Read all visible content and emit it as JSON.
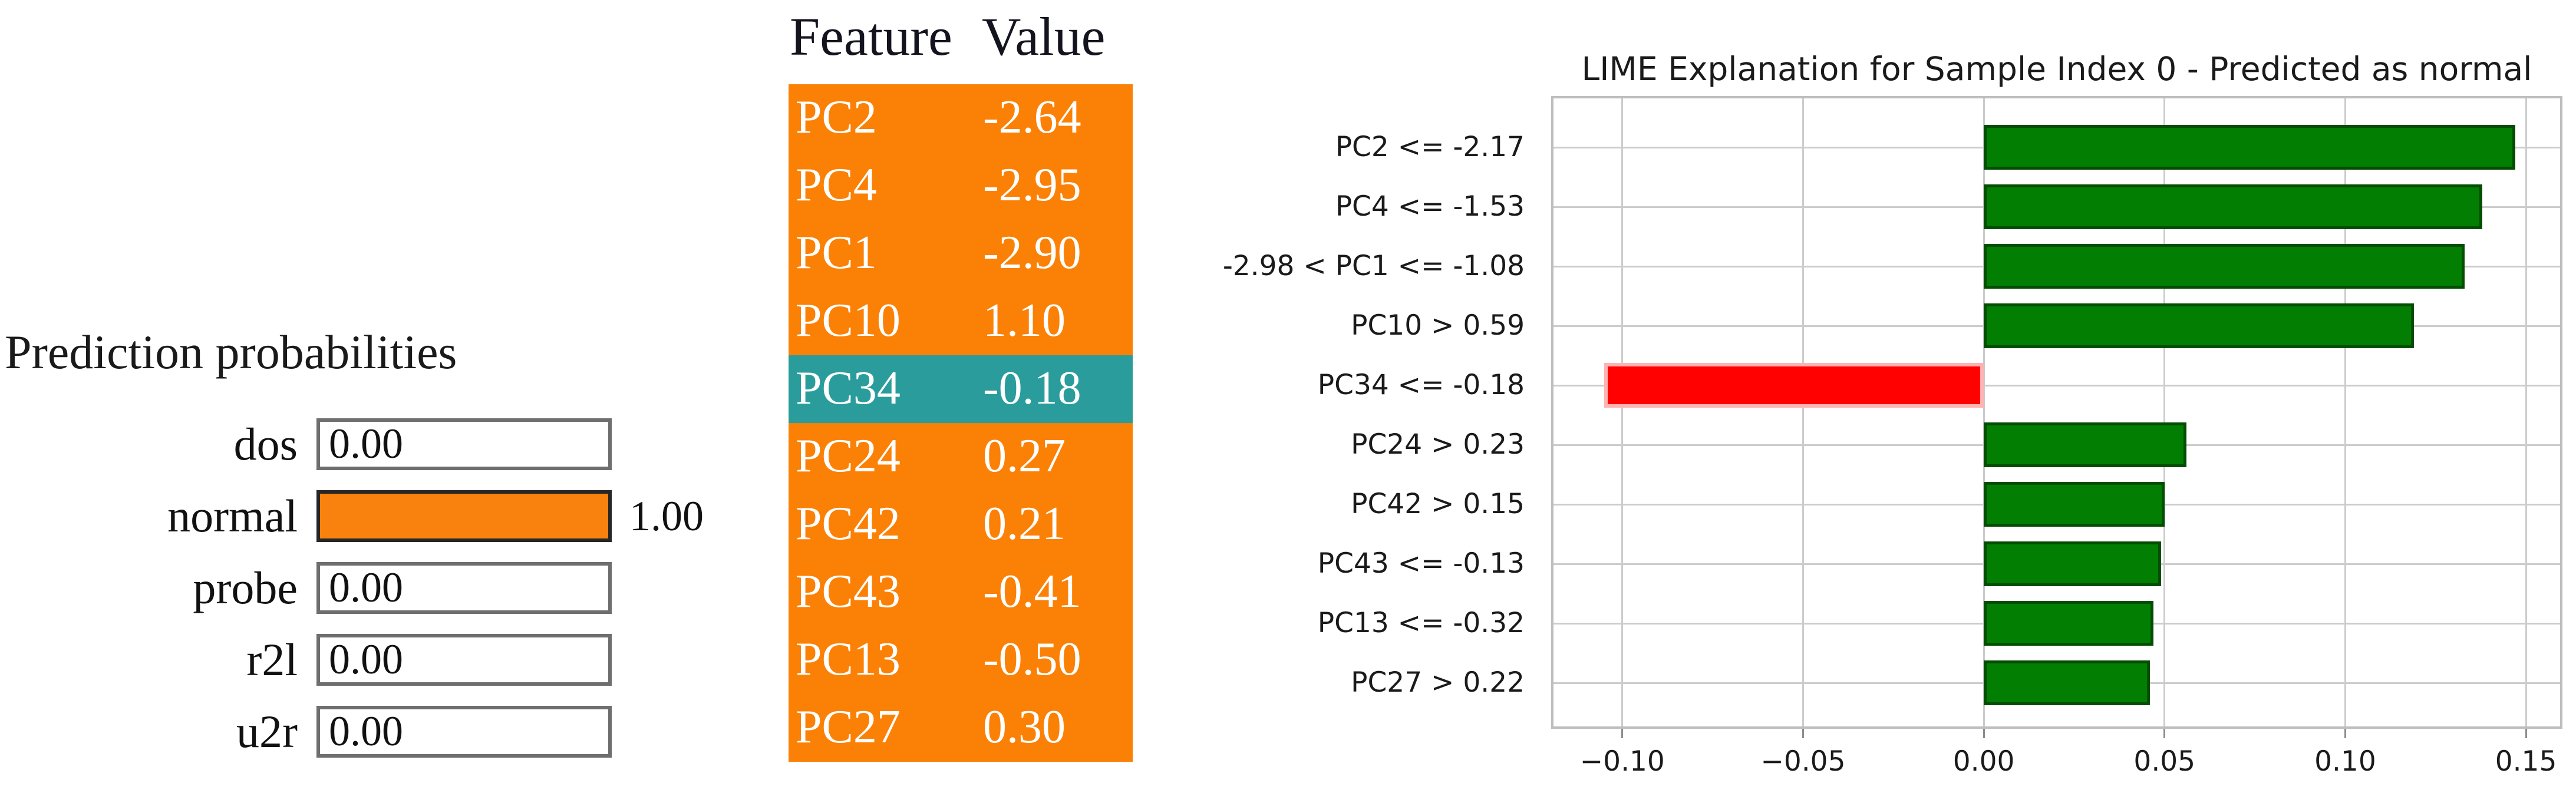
{
  "prediction_panel": {
    "title": "Prediction probabilities",
    "rows": [
      {
        "label": "dos",
        "value_inside": "0.00",
        "value_outside": "",
        "fill": 0.0
      },
      {
        "label": "normal",
        "value_inside": "",
        "value_outside": "1.00",
        "fill": 1.0
      },
      {
        "label": "probe",
        "value_inside": "0.00",
        "value_outside": "",
        "fill": 0.0
      },
      {
        "label": "r2l",
        "value_inside": "0.00",
        "value_outside": "",
        "fill": 0.0
      },
      {
        "label": "u2r",
        "value_inside": "0.00",
        "value_outside": "",
        "fill": 0.0
      }
    ],
    "bar_color": "#F8820D",
    "highlight_border_color": "#262626",
    "box_border_color": "#6e6e6e"
  },
  "feature_table": {
    "header": {
      "feature": "Feature",
      "value": "Value"
    },
    "rows": [
      {
        "feature": "PC2",
        "value": "-2.64",
        "row_color": "#FB8106"
      },
      {
        "feature": "PC4",
        "value": "-2.95",
        "row_color": "#FB8106"
      },
      {
        "feature": "PC1",
        "value": "-2.90",
        "row_color": "#FB8106"
      },
      {
        "feature": "PC10",
        "value": "1.10",
        "row_color": "#FB8106"
      },
      {
        "feature": "PC34",
        "value": "-0.18",
        "row_color": "#2B9C9C"
      },
      {
        "feature": "PC24",
        "value": "0.27",
        "row_color": "#FB8106"
      },
      {
        "feature": "PC42",
        "value": "0.21",
        "row_color": "#FB8106"
      },
      {
        "feature": "PC43",
        "value": "-0.41",
        "row_color": "#FB8106"
      },
      {
        "feature": "PC13",
        "value": "-0.50",
        "row_color": "#FB8106"
      },
      {
        "feature": "PC27",
        "value": "0.30",
        "row_color": "#FB8106"
      }
    ]
  },
  "chart_data": {
    "type": "bar",
    "orientation": "horizontal",
    "title": "LIME Explanation for Sample Index 0 - Predicted as normal",
    "categories": [
      "PC2 <= -2.17",
      "PC4 <= -1.53",
      "-2.98 < PC1 <= -1.08",
      "PC10 > 0.59",
      "PC34 <= -0.18",
      "PC24 > 0.23",
      "PC42 > 0.15",
      "PC43 <= -0.13",
      "PC13 <= -0.32",
      "PC27 > 0.22"
    ],
    "values": [
      0.147,
      0.138,
      0.133,
      0.119,
      -0.105,
      0.056,
      0.05,
      0.049,
      0.047,
      0.046
    ],
    "xticks": [
      -0.1,
      -0.05,
      0.0,
      0.05,
      0.1,
      0.15
    ],
    "xtick_labels": [
      "−0.10",
      "−0.05",
      "0.00",
      "0.05",
      "0.10",
      "0.15"
    ],
    "xlim": [
      -0.1197,
      0.1601
    ],
    "grid": true,
    "legend": null,
    "colors": {
      "positive_fill": "#027E02",
      "positive_edge": "#034E03",
      "negative_fill": "#FF0101",
      "negative_edge": "#FFB3B3",
      "gridline": "#CCCCCC",
      "spine": "#BEBEBE",
      "tick": "#8C8C8C",
      "text": "#1A1A1A"
    }
  }
}
